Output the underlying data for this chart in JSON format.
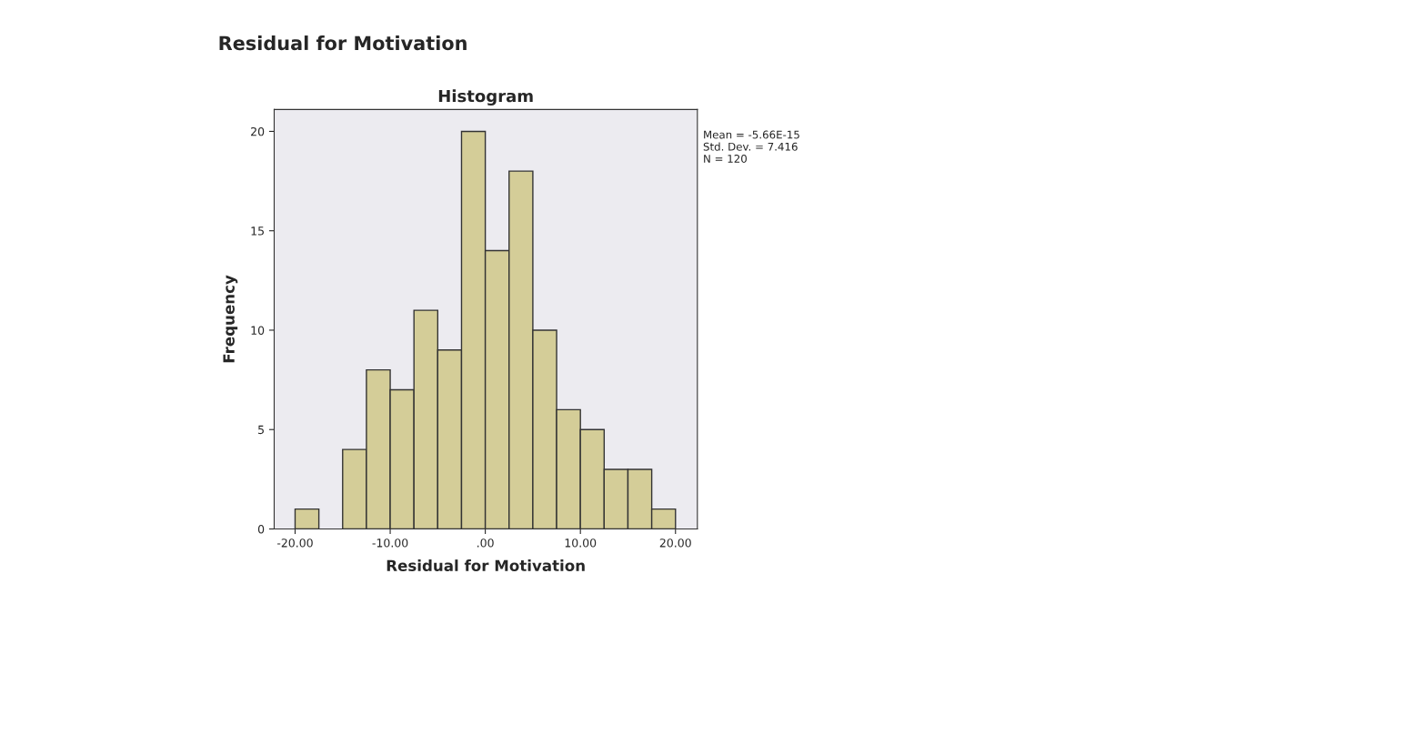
{
  "chart_data": {
    "type": "histogram",
    "title": "Residual for Motivation",
    "subtitle": "Histogram",
    "xlabel": "Residual for Motivation",
    "ylabel": "Frequency",
    "bins": [
      -20,
      -17.5,
      -15,
      -12.5,
      -10,
      -7.5,
      -5,
      -2.5,
      0,
      2.5,
      5,
      7.5,
      10,
      12.5,
      15,
      17.5,
      20
    ],
    "values": [
      1,
      0,
      4,
      8,
      7,
      11,
      9,
      20,
      14,
      18,
      10,
      6,
      5,
      3,
      3,
      1
    ],
    "color": "#d4cd98",
    "xlim": [
      -22.2,
      22.3
    ],
    "ylim": [
      0,
      21.1
    ],
    "xticks": [
      {
        "value": -20,
        "label": "-20.00"
      },
      {
        "value": -10,
        "label": "-10.00"
      },
      {
        "value": 0,
        "label": ".00"
      },
      {
        "value": 10,
        "label": "10.00"
      },
      {
        "value": 20,
        "label": "20.00"
      }
    ],
    "yticks": [
      0,
      5,
      10,
      15,
      20
    ],
    "annotations": [
      "Mean = -5.66E-15\nStd. Dev. = 7.416\nN = 120"
    ],
    "grid": false,
    "legend": false
  }
}
